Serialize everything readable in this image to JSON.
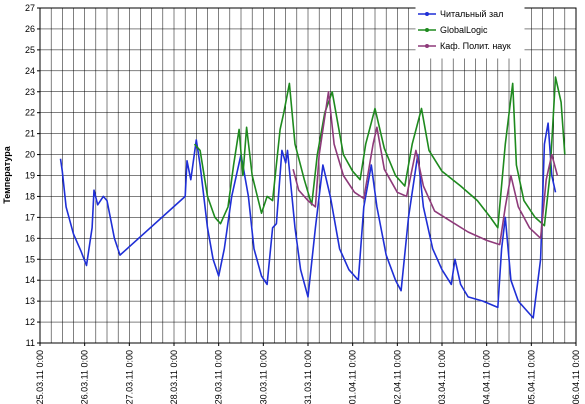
{
  "chart_data": {
    "type": "line",
    "y_label": "Температура",
    "ylim": [
      11,
      27
    ],
    "yticks": [
      11,
      12,
      13,
      14,
      15,
      16,
      17,
      18,
      19,
      20,
      21,
      22,
      23,
      24,
      25,
      26,
      27
    ],
    "xlim": [
      "2011-03-25 00:00",
      "2011-04-06 00:00"
    ],
    "xticks": [
      {
        "value": "2011-03-25 00:00",
        "label": "25.03.11 0:00"
      },
      {
        "value": "2011-03-26 00:00",
        "label": "26.03.11 0:00"
      },
      {
        "value": "2011-03-27 00:00",
        "label": "27.03.11 0:00"
      },
      {
        "value": "2011-03-28 00:00",
        "label": "28.03.11 0:00"
      },
      {
        "value": "2011-03-29 00:00",
        "label": "29.03.11 0:00"
      },
      {
        "value": "2011-03-30 00:00",
        "label": "30.03.11 0:00"
      },
      {
        "value": "2011-03-31 00:00",
        "label": "31.03.11 0:00"
      },
      {
        "value": "2011-04-01 00:00",
        "label": "01.04.11 0:00"
      },
      {
        "value": "2011-04-02 00:00",
        "label": "02.04.11 0:00"
      },
      {
        "value": "2011-04-03 00:00",
        "label": "03.04.11 0:00"
      },
      {
        "value": "2011-04-04 00:00",
        "label": "04.04.11 0:00"
      },
      {
        "value": "2011-04-05 00:00",
        "label": "05.04.11 0:00"
      },
      {
        "value": "2011-04-06 00:00",
        "label": "06.04.11 0:00"
      }
    ],
    "grid": true,
    "legend": "top-right",
    "series": [
      {
        "name": "Читальный зал",
        "color": "#1f2fd6",
        "x": [
          "2011-03-25 11:00",
          "2011-03-25 12:00",
          "2011-03-25 14:00",
          "2011-03-25 18:00",
          "2011-03-25 22:00",
          "2011-03-26 01:00",
          "2011-03-26 04:00",
          "2011-03-26 05:00",
          "2011-03-26 07:00",
          "2011-03-26 10:00",
          "2011-03-26 12:00",
          "2011-03-26 16:00",
          "2011-03-26 19:00",
          "2011-03-28 06:00",
          "2011-03-28 07:00",
          "2011-03-28 09:00",
          "2011-03-28 12:00",
          "2011-03-28 14:00",
          "2011-03-28 18:00",
          "2011-03-28 21:00",
          "2011-03-29 00:00",
          "2011-03-29 03:00",
          "2011-03-29 07:00",
          "2011-03-29 12:00",
          "2011-03-29 16:00",
          "2011-03-29 19:00",
          "2011-03-29 23:00",
          "2011-03-30 02:00",
          "2011-03-30 05:00",
          "2011-03-30 07:00",
          "2011-03-30 10:00",
          "2011-03-30 12:00",
          "2011-03-30 13:00",
          "2011-03-30 17:00",
          "2011-03-30 20:00",
          "2011-03-31 00:00",
          "2011-03-31 04:00",
          "2011-03-31 08:00",
          "2011-03-31 12:00",
          "2011-03-31 17:00",
          "2011-03-31 22:00",
          "2011-04-01 03:00",
          "2011-04-01 06:00",
          "2011-04-01 10:00",
          "2011-04-01 13:00",
          "2011-04-01 18:00",
          "2011-04-01 23:00",
          "2011-04-02 02:00",
          "2011-04-02 06:00",
          "2011-04-02 11:00",
          "2011-04-02 14:00",
          "2011-04-02 19:00",
          "2011-04-03 00:00",
          "2011-04-03 05:00",
          "2011-04-03 07:00",
          "2011-04-03 10:00",
          "2011-04-03 14:00",
          "2011-04-03 22:00",
          "2011-04-04 06:00",
          "2011-04-04 08:00",
          "2011-04-04 10:00",
          "2011-04-04 13:00",
          "2011-04-04 17:00",
          "2011-04-04 22:00",
          "2011-04-05 01:00",
          "2011-04-05 05:00",
          "2011-04-05 07:00",
          "2011-04-05 09:00",
          "2011-04-05 11:00",
          "2011-04-05 13:00"
        ],
        "values": [
          19.8,
          19.2,
          17.5,
          16.2,
          15.4,
          14.7,
          16.5,
          18.3,
          17.6,
          18.0,
          17.8,
          16.0,
          15.2,
          18.0,
          19.7,
          18.8,
          20.7,
          19.5,
          16.5,
          15.0,
          14.2,
          15.5,
          18.0,
          20.0,
          18.0,
          15.5,
          14.2,
          13.8,
          16.5,
          16.7,
          20.2,
          19.6,
          20.2,
          16.5,
          14.5,
          13.2,
          16.5,
          19.5,
          18.0,
          15.5,
          14.5,
          14.0,
          17.5,
          19.5,
          17.5,
          15.2,
          14.0,
          13.5,
          17.0,
          20.0,
          17.5,
          15.5,
          14.5,
          13.8,
          15.0,
          13.8,
          13.2,
          13.0,
          12.7,
          15.5,
          17.0,
          14.0,
          13.0,
          12.5,
          12.2,
          15.0,
          20.5,
          21.5,
          19.0,
          18.2
        ]
      },
      {
        "name": "GlobalLogic",
        "color": "#1e8a1e",
        "x": [
          "2011-03-28 11:00",
          "2011-03-28 14:00",
          "2011-03-28 18:00",
          "2011-03-28 22:00",
          "2011-03-29 01:00",
          "2011-03-29 05:00",
          "2011-03-29 08:00",
          "2011-03-29 11:00",
          "2011-03-29 13:00",
          "2011-03-29 15:00",
          "2011-03-29 18:00",
          "2011-03-29 23:00",
          "2011-03-30 02:00",
          "2011-03-30 05:00",
          "2011-03-30 09:00",
          "2011-03-30 11:00",
          "2011-03-30 14:00",
          "2011-03-30 17:00",
          "2011-03-30 22:00",
          "2011-03-31 02:00",
          "2011-03-31 05:00",
          "2011-03-31 09:00",
          "2011-03-31 13:00",
          "2011-03-31 16:00",
          "2011-03-31 19:00",
          "2011-04-01 00:00",
          "2011-04-01 04:00",
          "2011-04-01 07:00",
          "2011-04-01 12:00",
          "2011-04-01 17:00",
          "2011-04-01 23:00",
          "2011-04-02 04:00",
          "2011-04-02 08:00",
          "2011-04-02 13:00",
          "2011-04-02 17:00",
          "2011-04-03 00:00",
          "2011-04-03 10:00",
          "2011-04-03 19:00",
          "2011-04-04 02:00",
          "2011-04-04 06:00",
          "2011-04-04 10:00",
          "2011-04-04 14:00",
          "2011-04-04 16:00",
          "2011-04-04 20:00",
          "2011-04-05 02:00",
          "2011-04-05 07:00",
          "2011-04-05 10:00",
          "2011-04-05 13:00",
          "2011-04-05 16:00",
          "2011-04-05 18:00"
        ],
        "values": [
          20.5,
          20.2,
          18.0,
          17.0,
          16.7,
          17.5,
          19.5,
          21.2,
          19.0,
          21.3,
          19.0,
          17.2,
          18.0,
          17.8,
          21.2,
          22.0,
          23.4,
          20.5,
          18.8,
          17.6,
          20.0,
          22.0,
          23.0,
          21.5,
          20.0,
          19.2,
          18.8,
          20.5,
          22.2,
          20.3,
          19.0,
          18.5,
          20.5,
          22.2,
          20.2,
          19.2,
          18.5,
          17.8,
          17.0,
          16.5,
          20.5,
          23.4,
          19.5,
          17.8,
          17.0,
          16.6,
          19.0,
          23.7,
          22.5,
          20.0
        ]
      },
      {
        "name": "Каф. Полит. наук",
        "color": "#8e3a7a",
        "x": [
          "2011-03-30 16:00",
          "2011-03-30 19:00",
          "2011-03-31 00:00",
          "2011-03-31 04:00",
          "2011-03-31 06:00",
          "2011-03-31 11:00",
          "2011-03-31 14:00",
          "2011-03-31 19:00",
          "2011-04-01 01:00",
          "2011-04-01 06:00",
          "2011-04-01 11:00",
          "2011-04-01 13:00",
          "2011-04-01 17:00",
          "2011-04-02 00:00",
          "2011-04-02 05:00",
          "2011-04-02 10:00",
          "2011-04-02 14:00",
          "2011-04-02 20:00",
          "2011-04-03 05:00",
          "2011-04-03 14:00",
          "2011-04-04 00:00",
          "2011-04-04 07:00",
          "2011-04-04 10:00",
          "2011-04-04 13:00",
          "2011-04-04 17:00",
          "2011-04-04 23:00",
          "2011-04-05 05:00",
          "2011-04-05 08:00",
          "2011-04-05 11:00",
          "2011-04-05 14:00"
        ],
        "values": [
          19.3,
          18.3,
          17.8,
          17.5,
          20.0,
          23.0,
          20.5,
          19.0,
          18.2,
          17.9,
          20.5,
          21.3,
          19.3,
          18.2,
          18.0,
          20.2,
          18.5,
          17.3,
          16.8,
          16.3,
          15.9,
          15.7,
          17.5,
          19.0,
          17.5,
          16.5,
          16.0,
          18.8,
          20.0,
          19.0
        ]
      }
    ]
  }
}
